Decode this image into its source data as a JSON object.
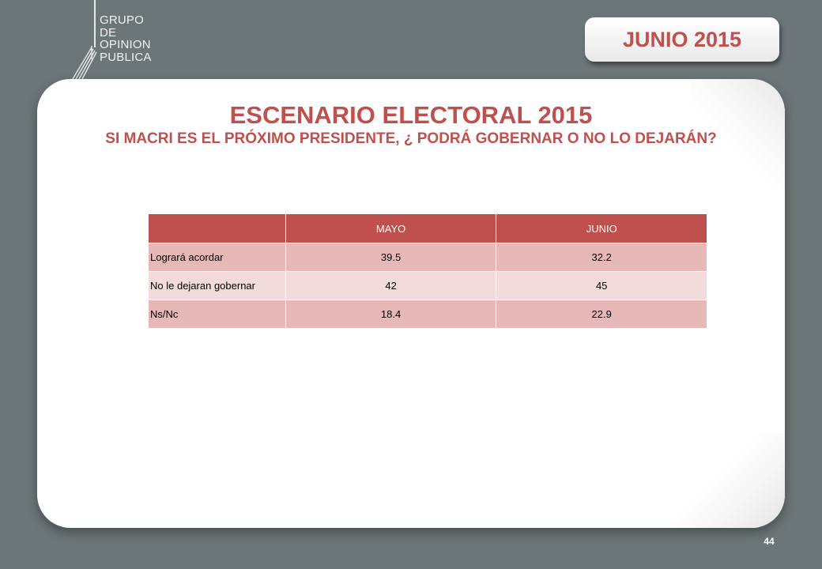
{
  "logo": {
    "lines": [
      "GRUPO",
      "DE",
      "OPINION",
      "PUBLICA"
    ]
  },
  "date_badge": "JUNIO 2015",
  "title": "ESCENARIO ELECTORAL 2015",
  "subtitle": "SI MACRI ES EL PRÓXIMO PRESIDENTE, ¿ PODRÁ GOBERNAR O NO LO DEJARÁN?",
  "table": {
    "headers": [
      "",
      "MAYO",
      "JUNIO"
    ],
    "rows": [
      [
        "Logrará acordar",
        "39.5",
        "32.2"
      ],
      [
        "No le dejaran gobernar",
        "42",
        "45"
      ],
      [
        "Ns/Nc",
        "18.4",
        "22.9"
      ]
    ]
  },
  "page_number": "44",
  "colors": {
    "background": "#6d7677",
    "accent": "#c0504d",
    "row_dark": "#e6b9b8",
    "row_light": "#f2dcdb"
  }
}
